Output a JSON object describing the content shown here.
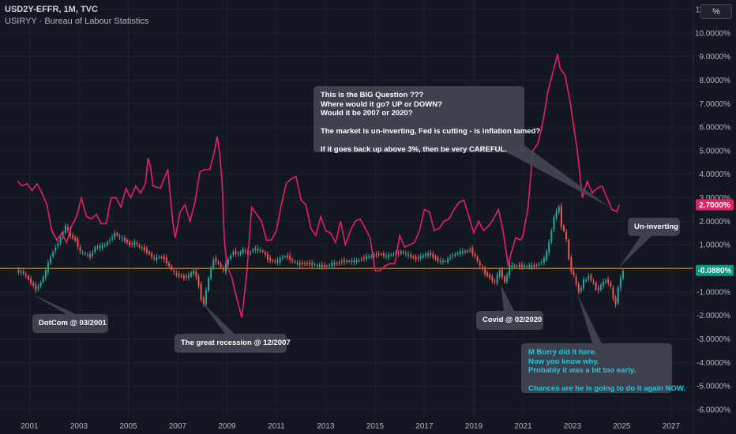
{
  "header": {
    "symbol_line": "USD2Y-EFFR, 1M, TVC",
    "indicator_line": "USIRYY · Bureau of Labour Statistics",
    "unit_button": "%"
  },
  "colors": {
    "background": "#131722",
    "grid": "#1e222d",
    "inflation_line": "#e91e63",
    "candle_up": "#26a69a",
    "candle_down": "#ef5350",
    "zero_line": "#f5a623",
    "callout": "#424652",
    "callout_text_blue": "#26c6da"
  },
  "annotations": {
    "big_question": "This is the BIG Question ???\nWhere would it go? UP or DOWN?\nWould it be 2007 or 2020?\n\nThe market is un-inverting, Fed is cutting - is inflation tamed?\n\nIf it goes back up above 3%, then be very CAREFUL.",
    "un_inverting": "Un-inverting",
    "dotcom": "DotCom @ 03/2001",
    "recession": "The great recession @ 12/2007",
    "covid": "Covid @ 02/2020",
    "burry": "M Burry did it here.\nNow you know why.\nProbably it was a bit too early.\n\nChances are he is going to do it again NOW."
  },
  "chart_data": {
    "type": "line",
    "x_ticks": [
      "2001",
      "2003",
      "2005",
      "2007",
      "2009",
      "2011",
      "2013",
      "2015",
      "2017",
      "2019",
      "2021",
      "2023",
      "2025",
      "2027"
    ],
    "y_ticks": [
      "11.0000%",
      "10.0000%",
      "9.0000%",
      "8.0000%",
      "7.0000%",
      "6.0000%",
      "5.0000%",
      "4.0000%",
      "3.0000%",
      "2.0000%",
      "1.0000%",
      "-1.0000%",
      "-2.0000%",
      "-3.0000%",
      "-4.0000%",
      "-5.0000%",
      "-6.0000%"
    ],
    "xlim": [
      1999.8,
      2027.9
    ],
    "ylim": [
      -6.3,
      11.4
    ],
    "last_values": {
      "inflation": "2.7000%",
      "spread": "-0.0880%"
    },
    "series": [
      {
        "name": "USIRYY",
        "points": [
          [
            2000.5,
            3.7
          ],
          [
            2000.7,
            3.5
          ],
          [
            2000.9,
            3.6
          ],
          [
            2001.1,
            3.3
          ],
          [
            2001.3,
            3.6
          ],
          [
            2001.5,
            3.2
          ],
          [
            2001.7,
            2.7
          ],
          [
            2001.9,
            1.6
          ],
          [
            2002.1,
            1.2
          ],
          [
            2002.3,
            1.5
          ],
          [
            2002.5,
            1.1
          ],
          [
            2002.7,
            1.8
          ],
          [
            2002.9,
            2.2
          ],
          [
            2003.1,
            3.0
          ],
          [
            2003.3,
            2.2
          ],
          [
            2003.5,
            2.1
          ],
          [
            2003.7,
            2.3
          ],
          [
            2003.9,
            1.9
          ],
          [
            2004.1,
            1.9
          ],
          [
            2004.3,
            3.0
          ],
          [
            2004.5,
            3.0
          ],
          [
            2004.7,
            2.6
          ],
          [
            2004.9,
            3.4
          ],
          [
            2005.1,
            3.0
          ],
          [
            2005.3,
            3.5
          ],
          [
            2005.5,
            3.2
          ],
          [
            2005.7,
            3.6
          ],
          [
            2005.8,
            4.7
          ],
          [
            2005.9,
            4.3
          ],
          [
            2006.0,
            3.5
          ],
          [
            2006.3,
            3.4
          ],
          [
            2006.6,
            4.2
          ],
          [
            2006.8,
            2.0
          ],
          [
            2006.9,
            1.3
          ],
          [
            2007.1,
            2.4
          ],
          [
            2007.3,
            2.7
          ],
          [
            2007.5,
            2.0
          ],
          [
            2007.7,
            2.8
          ],
          [
            2007.9,
            4.1
          ],
          [
            2008.1,
            4.2
          ],
          [
            2008.3,
            4.2
          ],
          [
            2008.5,
            5.0
          ],
          [
            2008.6,
            5.6
          ],
          [
            2008.7,
            4.9
          ],
          [
            2008.8,
            3.7
          ],
          [
            2008.9,
            1.1
          ],
          [
            2009.0,
            0.1
          ],
          [
            2009.2,
            -0.4
          ],
          [
            2009.4,
            -1.3
          ],
          [
            2009.6,
            -2.1
          ],
          [
            2009.8,
            -0.2
          ],
          [
            2010.0,
            2.6
          ],
          [
            2010.2,
            2.3
          ],
          [
            2010.4,
            2.0
          ],
          [
            2010.6,
            1.2
          ],
          [
            2010.8,
            1.2
          ],
          [
            2011.0,
            1.6
          ],
          [
            2011.2,
            2.7
          ],
          [
            2011.4,
            3.6
          ],
          [
            2011.6,
            3.8
          ],
          [
            2011.8,
            3.9
          ],
          [
            2012.0,
            2.9
          ],
          [
            2012.2,
            2.7
          ],
          [
            2012.4,
            1.7
          ],
          [
            2012.6,
            1.4
          ],
          [
            2012.8,
            2.2
          ],
          [
            2013.0,
            1.6
          ],
          [
            2013.2,
            1.5
          ],
          [
            2013.4,
            1.1
          ],
          [
            2013.6,
            2.0
          ],
          [
            2013.8,
            1.0
          ],
          [
            2014.0,
            1.6
          ],
          [
            2014.2,
            2.0
          ],
          [
            2014.4,
            2.1
          ],
          [
            2014.6,
            1.7
          ],
          [
            2014.8,
            1.3
          ],
          [
            2015.0,
            -0.1
          ],
          [
            2015.2,
            -0.1
          ],
          [
            2015.4,
            0.1
          ],
          [
            2015.6,
            0.2
          ],
          [
            2015.8,
            0.2
          ],
          [
            2016.0,
            1.4
          ],
          [
            2016.2,
            0.9
          ],
          [
            2016.4,
            1.0
          ],
          [
            2016.6,
            1.1
          ],
          [
            2016.8,
            1.6
          ],
          [
            2017.0,
            2.5
          ],
          [
            2017.2,
            2.4
          ],
          [
            2017.4,
            1.6
          ],
          [
            2017.6,
            1.7
          ],
          [
            2017.8,
            2.0
          ],
          [
            2018.0,
            2.1
          ],
          [
            2018.2,
            2.5
          ],
          [
            2018.4,
            2.8
          ],
          [
            2018.6,
            2.9
          ],
          [
            2018.8,
            2.2
          ],
          [
            2019.0,
            1.5
          ],
          [
            2019.2,
            2.0
          ],
          [
            2019.4,
            1.6
          ],
          [
            2019.6,
            1.8
          ],
          [
            2019.8,
            2.1
          ],
          [
            2020.0,
            2.5
          ],
          [
            2020.2,
            1.5
          ],
          [
            2020.4,
            0.1
          ],
          [
            2020.5,
            0.6
          ],
          [
            2020.7,
            1.3
          ],
          [
            2020.9,
            1.2
          ],
          [
            2021.0,
            1.4
          ],
          [
            2021.2,
            2.6
          ],
          [
            2021.4,
            5.0
          ],
          [
            2021.6,
            5.3
          ],
          [
            2021.8,
            6.2
          ],
          [
            2022.0,
            7.5
          ],
          [
            2022.2,
            8.3
          ],
          [
            2022.4,
            9.1
          ],
          [
            2022.5,
            8.5
          ],
          [
            2022.7,
            8.2
          ],
          [
            2022.9,
            7.1
          ],
          [
            2023.0,
            6.4
          ],
          [
            2023.2,
            5.0
          ],
          [
            2023.4,
            3.0
          ],
          [
            2023.6,
            3.7
          ],
          [
            2023.8,
            3.2
          ],
          [
            2024.0,
            3.4
          ],
          [
            2024.2,
            3.5
          ],
          [
            2024.4,
            3.0
          ],
          [
            2024.6,
            2.5
          ],
          [
            2024.8,
            2.4
          ],
          [
            2024.9,
            2.7
          ]
        ]
      },
      {
        "name": "USD2Y-EFFR",
        "type": "candlestick",
        "points": [
          [
            2000.5,
            -0.2
          ],
          [
            2000.8,
            -0.6
          ],
          [
            2001.1,
            -0.9
          ],
          [
            2001.3,
            -0.6
          ],
          [
            2001.5,
            -0.1
          ],
          [
            2001.7,
            0.5
          ],
          [
            2001.9,
            0.9
          ],
          [
            2002.1,
            1.3
          ],
          [
            2002.3,
            1.8
          ],
          [
            2002.5,
            1.4
          ],
          [
            2002.7,
            1.2
          ],
          [
            2002.9,
            0.7
          ],
          [
            2003.1,
            0.6
          ],
          [
            2003.3,
            0.5
          ],
          [
            2003.5,
            0.9
          ],
          [
            2003.7,
            0.9
          ],
          [
            2003.9,
            1.0
          ],
          [
            2004.1,
            1.2
          ],
          [
            2004.3,
            1.5
          ],
          [
            2004.5,
            1.3
          ],
          [
            2004.7,
            1.2
          ],
          [
            2004.9,
            1.0
          ],
          [
            2005.1,
            1.1
          ],
          [
            2005.3,
            0.9
          ],
          [
            2005.5,
            0.8
          ],
          [
            2005.7,
            0.6
          ],
          [
            2005.9,
            0.4
          ],
          [
            2006.1,
            0.5
          ],
          [
            2006.3,
            0.4
          ],
          [
            2006.5,
            0.1
          ],
          [
            2006.7,
            -0.2
          ],
          [
            2006.9,
            -0.3
          ],
          [
            2007.1,
            -0.4
          ],
          [
            2007.3,
            -0.3
          ],
          [
            2007.5,
            -0.1
          ],
          [
            2007.7,
            -0.7
          ],
          [
            2007.9,
            -1.3
          ],
          [
            2008.0,
            -1.5
          ],
          [
            2008.1,
            -0.4
          ],
          [
            2008.3,
            0.4
          ],
          [
            2008.5,
            0.2
          ],
          [
            2008.7,
            -0.1
          ],
          [
            2008.9,
            0.4
          ],
          [
            2009.1,
            0.7
          ],
          [
            2009.3,
            0.6
          ],
          [
            2009.5,
            0.8
          ],
          [
            2009.7,
            0.6
          ],
          [
            2009.9,
            0.8
          ],
          [
            2010.1,
            0.8
          ],
          [
            2010.3,
            0.7
          ],
          [
            2010.5,
            0.4
          ],
          [
            2010.7,
            0.3
          ],
          [
            2010.9,
            0.3
          ],
          [
            2011.1,
            0.5
          ],
          [
            2011.3,
            0.5
          ],
          [
            2011.5,
            0.3
          ],
          [
            2011.7,
            0.2
          ],
          [
            2011.9,
            0.2
          ],
          [
            2012.1,
            0.2
          ],
          [
            2012.3,
            0.2
          ],
          [
            2012.5,
            0.1
          ],
          [
            2012.7,
            0.1
          ],
          [
            2012.9,
            0.1
          ],
          [
            2013.1,
            0.2
          ],
          [
            2013.3,
            0.2
          ],
          [
            2013.5,
            0.3
          ],
          [
            2013.7,
            0.3
          ],
          [
            2013.9,
            0.3
          ],
          [
            2014.1,
            0.3
          ],
          [
            2014.3,
            0.4
          ],
          [
            2014.5,
            0.5
          ],
          [
            2014.7,
            0.5
          ],
          [
            2014.9,
            0.6
          ],
          [
            2015.1,
            0.6
          ],
          [
            2015.3,
            0.5
          ],
          [
            2015.5,
            0.6
          ],
          [
            2015.7,
            0.6
          ],
          [
            2015.9,
            0.7
          ],
          [
            2016.1,
            0.6
          ],
          [
            2016.3,
            0.5
          ],
          [
            2016.5,
            0.4
          ],
          [
            2016.7,
            0.5
          ],
          [
            2016.9,
            0.6
          ],
          [
            2017.1,
            0.6
          ],
          [
            2017.3,
            0.4
          ],
          [
            2017.5,
            0.3
          ],
          [
            2017.7,
            0.3
          ],
          [
            2017.9,
            0.5
          ],
          [
            2018.1,
            0.6
          ],
          [
            2018.3,
            0.7
          ],
          [
            2018.5,
            0.7
          ],
          [
            2018.7,
            0.8
          ],
          [
            2018.9,
            0.5
          ],
          [
            2019.1,
            0.1
          ],
          [
            2019.3,
            -0.2
          ],
          [
            2019.5,
            -0.4
          ],
          [
            2019.7,
            -0.6
          ],
          [
            2019.9,
            -0.3
          ],
          [
            2020.0,
            -0.1
          ],
          [
            2020.1,
            -0.6
          ],
          [
            2020.3,
            0.1
          ],
          [
            2020.5,
            0.1
          ],
          [
            2020.7,
            0.1
          ],
          [
            2020.9,
            0.1
          ],
          [
            2021.1,
            0.1
          ],
          [
            2021.3,
            0.1
          ],
          [
            2021.5,
            0.2
          ],
          [
            2021.7,
            0.4
          ],
          [
            2021.9,
            0.7
          ],
          [
            2022.0,
            1.1
          ],
          [
            2022.1,
            1.6
          ],
          [
            2022.2,
            2.2
          ],
          [
            2022.3,
            2.4
          ],
          [
            2022.4,
            2.6
          ],
          [
            2022.5,
            1.8
          ],
          [
            2022.6,
            1.6
          ],
          [
            2022.7,
            1.2
          ],
          [
            2022.8,
            0.4
          ],
          [
            2022.9,
            -0.1
          ],
          [
            2023.0,
            -0.3
          ],
          [
            2023.1,
            -0.7
          ],
          [
            2023.2,
            -1.0
          ],
          [
            2023.3,
            -0.8
          ],
          [
            2023.4,
            -0.5
          ],
          [
            2023.5,
            -0.5
          ],
          [
            2023.6,
            -0.3
          ],
          [
            2023.7,
            -0.5
          ],
          [
            2023.8,
            -0.6
          ],
          [
            2023.9,
            -0.9
          ],
          [
            2024.0,
            -0.9
          ],
          [
            2024.1,
            -0.7
          ],
          [
            2024.2,
            -0.6
          ],
          [
            2024.3,
            -0.5
          ],
          [
            2024.4,
            -0.6
          ],
          [
            2024.5,
            -0.8
          ],
          [
            2024.6,
            -1.3
          ],
          [
            2024.7,
            -1.5
          ],
          [
            2024.8,
            -0.8
          ],
          [
            2024.9,
            -0.088
          ]
        ]
      }
    ]
  }
}
